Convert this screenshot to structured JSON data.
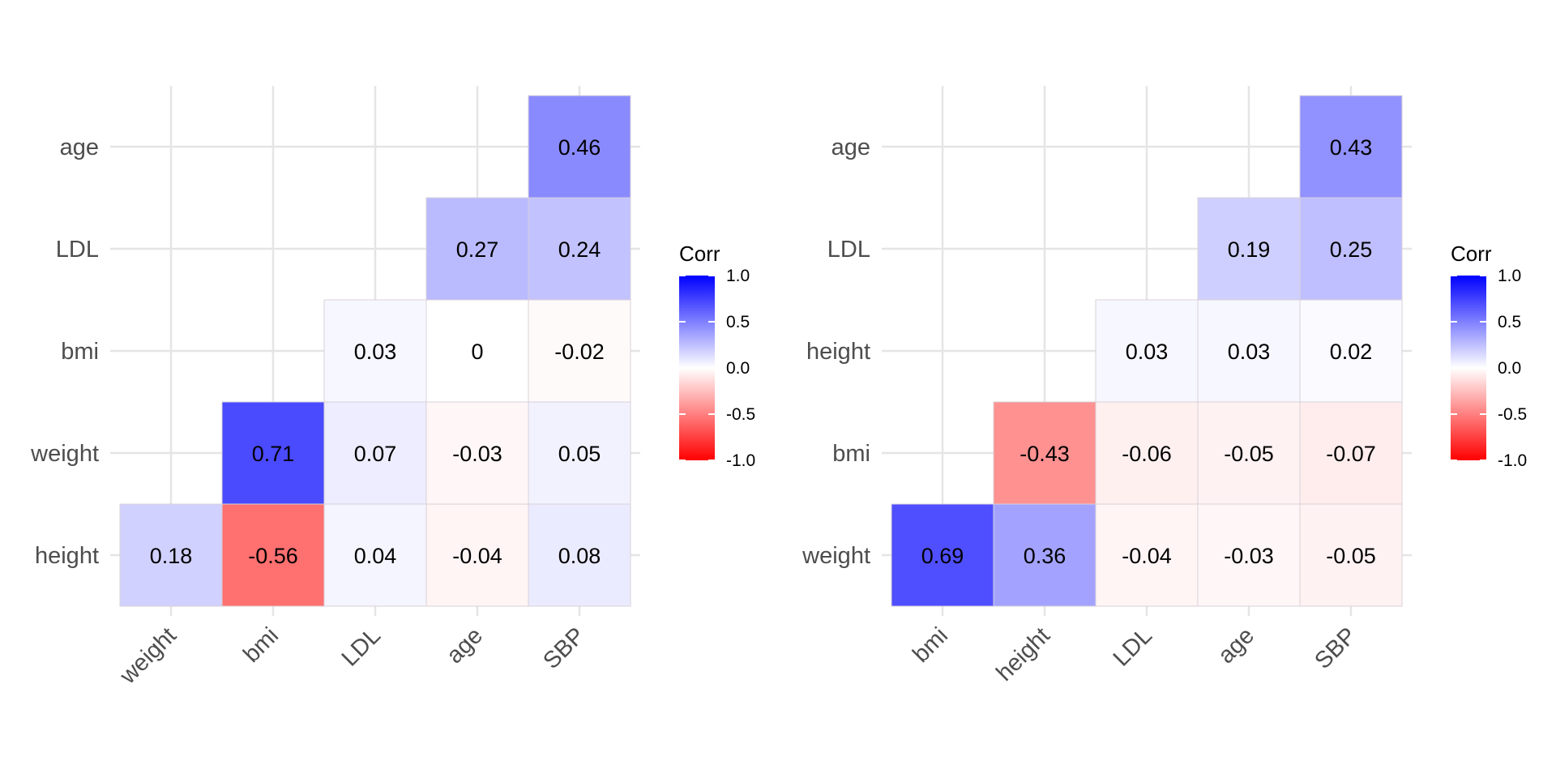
{
  "chart_data": [
    {
      "type": "heatmap",
      "x_categories": [
        "weight",
        "bmi",
        "LDL",
        "age",
        "SBP"
      ],
      "y_categories": [
        "height",
        "weight",
        "bmi",
        "LDL",
        "age"
      ],
      "cells": [
        {
          "x": "weight",
          "y": "height",
          "value": 0.18
        },
        {
          "x": "bmi",
          "y": "height",
          "value": -0.56
        },
        {
          "x": "LDL",
          "y": "height",
          "value": 0.04
        },
        {
          "x": "age",
          "y": "height",
          "value": -0.04
        },
        {
          "x": "SBP",
          "y": "height",
          "value": 0.08
        },
        {
          "x": "bmi",
          "y": "weight",
          "value": 0.71
        },
        {
          "x": "LDL",
          "y": "weight",
          "value": 0.07
        },
        {
          "x": "age",
          "y": "weight",
          "value": -0.03
        },
        {
          "x": "SBP",
          "y": "weight",
          "value": 0.05
        },
        {
          "x": "LDL",
          "y": "bmi",
          "value": 0.03
        },
        {
          "x": "age",
          "y": "bmi",
          "value": 0
        },
        {
          "x": "SBP",
          "y": "bmi",
          "value": -0.02
        },
        {
          "x": "age",
          "y": "LDL",
          "value": 0.27
        },
        {
          "x": "SBP",
          "y": "LDL",
          "value": 0.24
        },
        {
          "x": "SBP",
          "y": "age",
          "value": 0.46
        }
      ],
      "legend": {
        "title": "Corr",
        "ticks": [
          "1.0",
          "0.5",
          "0.0",
          "-0.5",
          "-1.0"
        ],
        "range": [
          -1,
          1
        ],
        "colors": {
          "low": "#ff0000",
          "mid": "#ffffff",
          "high": "#0000ff"
        }
      }
    },
    {
      "type": "heatmap",
      "x_categories": [
        "bmi",
        "height",
        "LDL",
        "age",
        "SBP"
      ],
      "y_categories": [
        "weight",
        "bmi",
        "height",
        "LDL",
        "age"
      ],
      "cells": [
        {
          "x": "bmi",
          "y": "weight",
          "value": 0.69
        },
        {
          "x": "height",
          "y": "weight",
          "value": 0.36
        },
        {
          "x": "LDL",
          "y": "weight",
          "value": -0.04
        },
        {
          "x": "age",
          "y": "weight",
          "value": -0.03
        },
        {
          "x": "SBP",
          "y": "weight",
          "value": -0.05
        },
        {
          "x": "height",
          "y": "bmi",
          "value": -0.43
        },
        {
          "x": "LDL",
          "y": "bmi",
          "value": -0.06
        },
        {
          "x": "age",
          "y": "bmi",
          "value": -0.05
        },
        {
          "x": "SBP",
          "y": "bmi",
          "value": -0.07
        },
        {
          "x": "LDL",
          "y": "height",
          "value": 0.03
        },
        {
          "x": "age",
          "y": "height",
          "value": 0.03
        },
        {
          "x": "SBP",
          "y": "height",
          "value": 0.02
        },
        {
          "x": "age",
          "y": "LDL",
          "value": 0.19
        },
        {
          "x": "SBP",
          "y": "LDL",
          "value": 0.25
        },
        {
          "x": "SBP",
          "y": "age",
          "value": 0.43
        }
      ],
      "legend": {
        "title": "Corr",
        "ticks": [
          "1.0",
          "0.5",
          "0.0",
          "-0.5",
          "-1.0"
        ],
        "range": [
          -1,
          1
        ],
        "colors": {
          "low": "#ff0000",
          "mid": "#ffffff",
          "high": "#0000ff"
        }
      }
    }
  ]
}
